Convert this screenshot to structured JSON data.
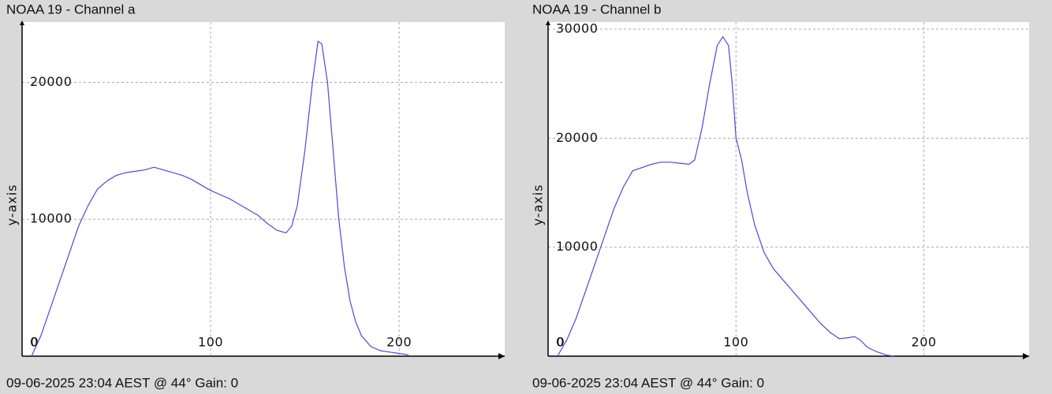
{
  "chart_data": [
    {
      "type": "line",
      "title": "NOAA 19 - Channel a",
      "ylabel": "y-axis",
      "footer": "09-06-2025 23:04 AEST @ 44° Gain: 0",
      "xlim": [
        0,
        256
      ],
      "ylim": [
        0,
        24400
      ],
      "xticks": [
        0,
        100,
        200
      ],
      "yticks": [
        0,
        10000,
        20000
      ],
      "grid": true,
      "series": [
        {
          "name": "Channel a",
          "color": "#4b4bd4",
          "x": [
            5,
            10,
            15,
            20,
            25,
            30,
            35,
            40,
            45,
            50,
            55,
            60,
            65,
            70,
            75,
            80,
            85,
            90,
            95,
            100,
            105,
            110,
            115,
            120,
            125,
            130,
            135,
            140,
            143,
            146,
            150,
            154,
            157,
            159,
            162,
            165,
            168,
            171,
            174,
            177,
            180,
            185,
            190,
            195,
            200,
            205
          ],
          "values": [
            0,
            1500,
            3500,
            5500,
            7500,
            9500,
            11000,
            12200,
            12800,
            13200,
            13400,
            13500,
            13600,
            13800,
            13600,
            13400,
            13200,
            12900,
            12500,
            12100,
            11800,
            11500,
            11100,
            10700,
            10300,
            9700,
            9200,
            9000,
            9500,
            11000,
            15000,
            20000,
            23000,
            22800,
            20000,
            15000,
            10000,
            6500,
            4000,
            2500,
            1500,
            700,
            400,
            300,
            200,
            100
          ]
        }
      ]
    },
    {
      "type": "line",
      "title": "NOAA 19 - Channel b",
      "ylabel": "y-axis",
      "footer": "09-06-2025 23:04 AEST @ 44° Gain: 0",
      "xlim": [
        0,
        256
      ],
      "ylim": [
        0,
        30650
      ],
      "xticks": [
        0,
        100,
        200
      ],
      "yticks": [
        0,
        10000,
        20000,
        30000
      ],
      "grid": true,
      "series": [
        {
          "name": "Channel b",
          "color": "#4b4bd4",
          "x": [
            5,
            10,
            15,
            20,
            25,
            30,
            35,
            40,
            45,
            50,
            55,
            60,
            65,
            70,
            75,
            78,
            82,
            86,
            90,
            93,
            96,
            98,
            100,
            103,
            106,
            110,
            115,
            120,
            125,
            130,
            135,
            140,
            145,
            150,
            155,
            160,
            163,
            166,
            170,
            175,
            180,
            184
          ],
          "values": [
            0,
            1500,
            3500,
            6000,
            8500,
            11000,
            13500,
            15500,
            17000,
            17300,
            17600,
            17800,
            17800,
            17700,
            17600,
            18000,
            21000,
            25000,
            28500,
            29300,
            28500,
            25000,
            20000,
            18000,
            15000,
            12000,
            9500,
            8000,
            7000,
            6000,
            5000,
            4000,
            3000,
            2200,
            1600,
            1700,
            1800,
            1500,
            800,
            400,
            100,
            0
          ]
        }
      ]
    }
  ]
}
